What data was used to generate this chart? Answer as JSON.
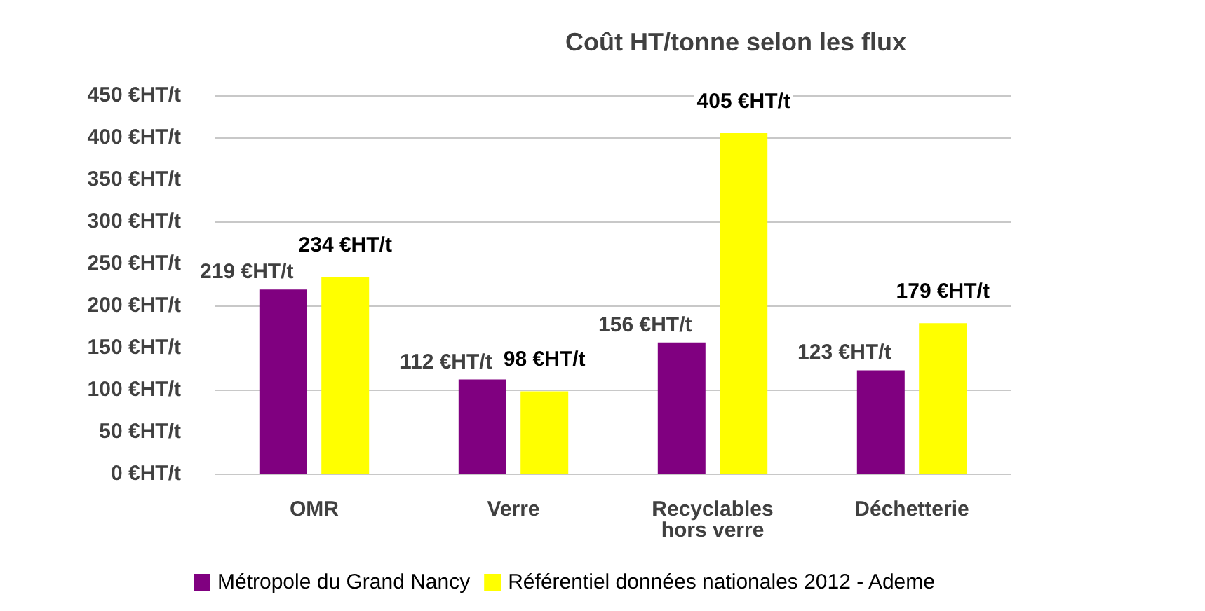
{
  "chart_data": {
    "type": "bar",
    "title": "Coût HT/tonne selon les flux",
    "categories": [
      "OMR",
      "Verre",
      "Recyclables\nhors verre",
      "Déchetterie"
    ],
    "series": [
      {
        "name": "Métropole du Grand Nancy",
        "color": "#800080",
        "values": [
          219,
          112,
          156,
          123
        ],
        "value_labels": [
          "219 €HT/t",
          "112 €HT/t",
          "156 €HT/t",
          "123 €HT/t"
        ]
      },
      {
        "name": "Référentiel données nationales 2012 - Ademe",
        "color": "#ffff00",
        "values": [
          234,
          98,
          405,
          179
        ],
        "value_labels": [
          "234 €HT/t",
          "98 €HT/t",
          "405 €HT/t",
          "179 €HT/t"
        ]
      }
    ],
    "ylim": [
      0,
      450
    ],
    "yticks": [
      {
        "value": 0,
        "label": "0 €HT/t"
      },
      {
        "value": 50,
        "label": "50 €HT/t"
      },
      {
        "value": 100,
        "label": "100 €HT/t"
      },
      {
        "value": 150,
        "label": "150 €HT/t"
      },
      {
        "value": 200,
        "label": "200 €HT/t"
      },
      {
        "value": 250,
        "label": "250 €HT/t"
      },
      {
        "value": 300,
        "label": "300 €HT/t"
      },
      {
        "value": 350,
        "label": "350 €HT/t"
      },
      {
        "value": 400,
        "label": "400 €HT/t"
      },
      {
        "value": 450,
        "label": "450 €HT/t"
      }
    ],
    "grid": "y",
    "legend": "bottom"
  }
}
